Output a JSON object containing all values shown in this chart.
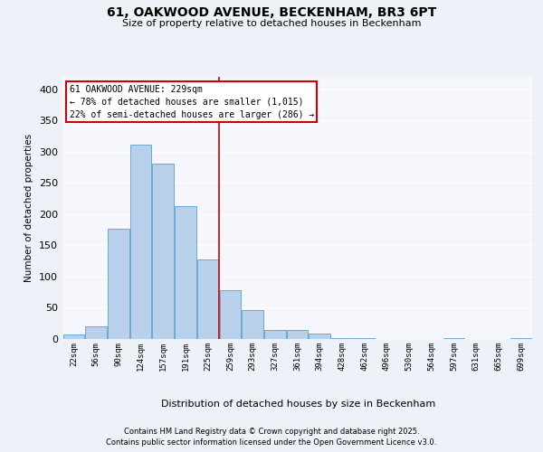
{
  "title": "61, OAKWOOD AVENUE, BECKENHAM, BR3 6PT",
  "subtitle": "Size of property relative to detached houses in Beckenham",
  "xlabel": "Distribution of detached houses by size in Beckenham",
  "ylabel": "Number of detached properties",
  "bin_labels": [
    "22sqm",
    "56sqm",
    "90sqm",
    "124sqm",
    "157sqm",
    "191sqm",
    "225sqm",
    "259sqm",
    "293sqm",
    "327sqm",
    "361sqm",
    "394sqm",
    "428sqm",
    "462sqm",
    "496sqm",
    "530sqm",
    "564sqm",
    "597sqm",
    "631sqm",
    "665sqm",
    "699sqm"
  ],
  "bar_heights": [
    7,
    21,
    177,
    311,
    281,
    213,
    127,
    78,
    47,
    15,
    15,
    9,
    2,
    1,
    0,
    0,
    0,
    1,
    0,
    0,
    2
  ],
  "bar_color": "#b8d0ea",
  "bar_edge_color": "#6aaad4",
  "property_line_x": 6.5,
  "annotation_title": "61 OAKWOOD AVENUE: 229sqm",
  "annotation_line1": "← 78% of detached houses are smaller (1,015)",
  "annotation_line2": "22% of semi-detached houses are larger (286) →",
  "annotation_box_facecolor": "#ffffff",
  "annotation_box_edgecolor": "#cc0000",
  "vline_color": "#cc0000",
  "footer_line1": "Contains HM Land Registry data © Crown copyright and database right 2025.",
  "footer_line2": "Contains public sector information licensed under the Open Government Licence v3.0.",
  "ylim": [
    0,
    420
  ],
  "yticks": [
    0,
    50,
    100,
    150,
    200,
    250,
    300,
    350,
    400
  ],
  "background_color": "#eef2f8",
  "plot_background_color": "#f5f7fc"
}
